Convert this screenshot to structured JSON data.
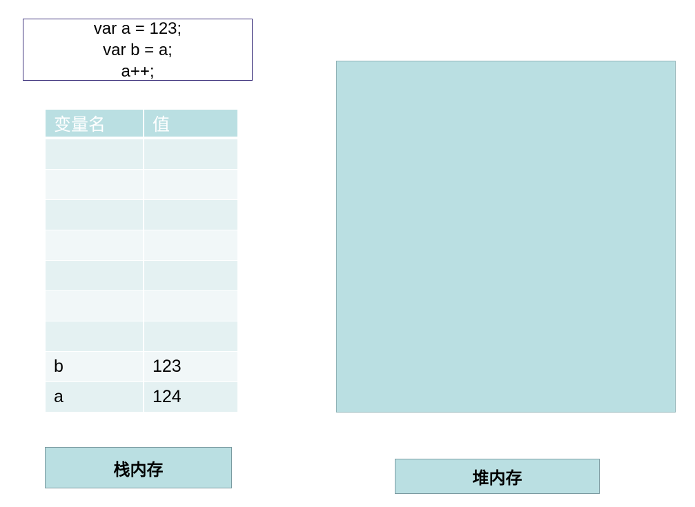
{
  "code": {
    "lines": [
      "var a = 123;",
      "var b = a;",
      "a++;"
    ]
  },
  "stack": {
    "headers": {
      "name": "变量名",
      "value": "值"
    },
    "rows": [
      {
        "name": "",
        "value": ""
      },
      {
        "name": "",
        "value": ""
      },
      {
        "name": "",
        "value": ""
      },
      {
        "name": "",
        "value": ""
      },
      {
        "name": "",
        "value": ""
      },
      {
        "name": "",
        "value": ""
      },
      {
        "name": "",
        "value": ""
      },
      {
        "name": "b",
        "value": "123"
      },
      {
        "name": "a",
        "value": "124"
      }
    ],
    "label": "栈内存"
  },
  "heap": {
    "label": "堆内存"
  },
  "colors": {
    "accent": "#badfe2",
    "row_odd": "#e4f1f2",
    "row_even": "#f1f7f8",
    "code_border": "#3a2f7a"
  }
}
